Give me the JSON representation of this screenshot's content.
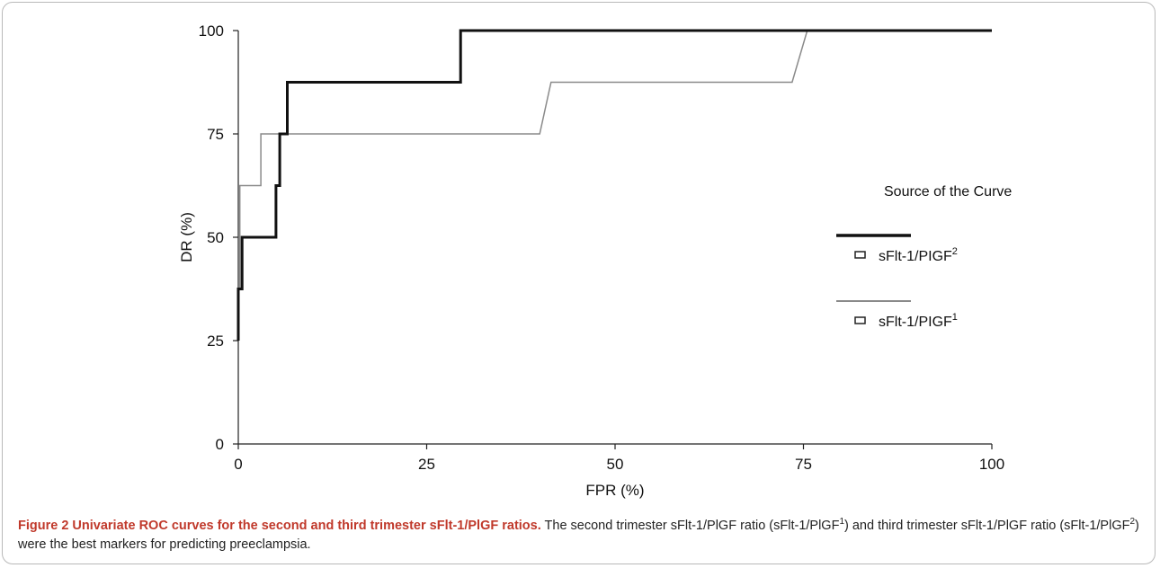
{
  "chart_data": {
    "type": "line",
    "xlabel": "FPR (%)",
    "ylabel": "DR (%)",
    "xlim": [
      0,
      100
    ],
    "ylim": [
      0,
      100
    ],
    "xticks": [
      0,
      25,
      50,
      75,
      100
    ],
    "yticks": [
      0,
      25,
      50,
      75,
      100
    ],
    "grid": false,
    "legend": {
      "title": "Source of the Curve",
      "position": "right",
      "entries": [
        {
          "name": "sFlt-1/PIGF",
          "sup": "2"
        },
        {
          "name": "sFlt-1/PIGF",
          "sup": "1"
        }
      ]
    },
    "series": [
      {
        "name": "sFlt-1/PIGF²",
        "color": "#111111",
        "width": 3,
        "x": [
          0,
          0,
          0.5,
          0.5,
          5,
          5,
          5.5,
          5.5,
          6.5,
          6.5,
          29.5,
          29.5,
          100
        ],
        "y": [
          25,
          37.5,
          37.5,
          50,
          50,
          62.5,
          62.5,
          75,
          75,
          87.5,
          87.5,
          100,
          100
        ]
      },
      {
        "name": "sFlt-1/PIGF¹",
        "color": "#8a8a8a",
        "width": 1.5,
        "x": [
          0,
          0,
          0.2,
          0.2,
          3,
          3,
          40,
          41.5,
          73.5,
          75.5,
          100
        ],
        "y": [
          25,
          37.5,
          37.5,
          62.5,
          62.5,
          75,
          75,
          87.5,
          87.5,
          100,
          100
        ]
      }
    ]
  },
  "caption": {
    "title": "Figure 2 Univariate ROC curves for the second and third trimester sFlt-1/PlGF ratios.",
    "text_1": " The second trimester sFlt-1/PlGF ratio (sFlt-1/PlGF",
    "sup_1": "1",
    "text_2": ") and third trimester sFlt-1/PlGF ratio (sFlt-1/PlGF",
    "sup_2": "2",
    "text_3": ") were the best markers for predicting preeclampsia."
  }
}
